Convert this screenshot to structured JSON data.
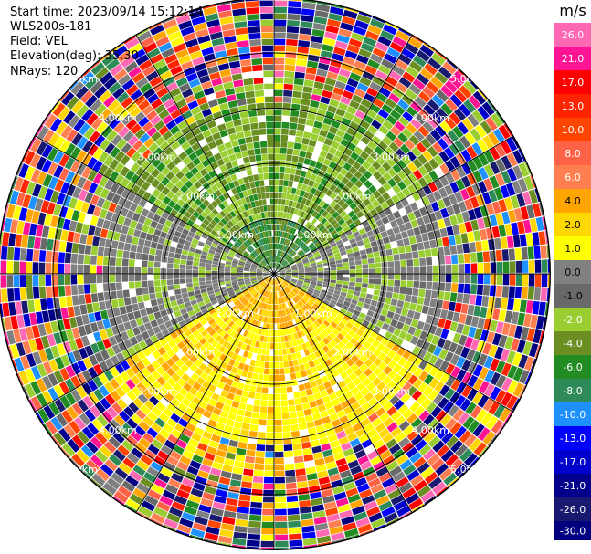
{
  "header": {
    "start_time": "Start time: 2023/09/14 15:12:14",
    "station": "WLS200s-181",
    "field": "Field: VEL",
    "elevation": "Elevation(deg): 35.30",
    "nrays": "NRays: 120"
  },
  "colorbar": {
    "unit": "m/s",
    "ticks": [
      "26.0",
      "21.0",
      "17.0",
      "13.0",
      "10.0",
      "8.0",
      "6.0",
      "4.0",
      "2.0",
      "1.0",
      "0.0",
      "-1.0",
      "-2.0",
      "-4.0",
      "-6.0",
      "-8.0",
      "-10.0",
      "-13.0",
      "-17.0",
      "-21.0",
      "-26.0",
      "-30.0"
    ],
    "colors": [
      "#ff69b4",
      "#ff1493",
      "#ff0000",
      "#ff2400",
      "#ff4500",
      "#ff6347",
      "#ff7f50",
      "#ffa500",
      "#ffd700",
      "#ffff00",
      "#808080",
      "#696969",
      "#9acd32",
      "#6b8e23",
      "#228b22",
      "#2e8b57",
      "#1e90ff",
      "#0000ff",
      "#0000cd",
      "#00008b",
      "#191970",
      "#000080"
    ]
  },
  "chart_data": {
    "type": "ppi",
    "field": "VEL",
    "unit": "m/s",
    "n_rays": 120,
    "range_rings": [
      "1.00km",
      "2.00km",
      "3.00km",
      "4.00km",
      "5.00km"
    ],
    "ring_label_positions": [
      "upper-left",
      "upper-right",
      "lower-left",
      "lower-right"
    ],
    "spoke_count": 12,
    "summary": {
      "center_core_within_km": 1.0,
      "north_sector_vel": "-2 to -6 (green)",
      "south_sector_vel": "2 to 4 (yellow)",
      "east_west_sector_vel": "0 to -1 (gray)",
      "beyond_km": 3.0,
      "outer_pattern": "noisy multicolor"
    }
  }
}
